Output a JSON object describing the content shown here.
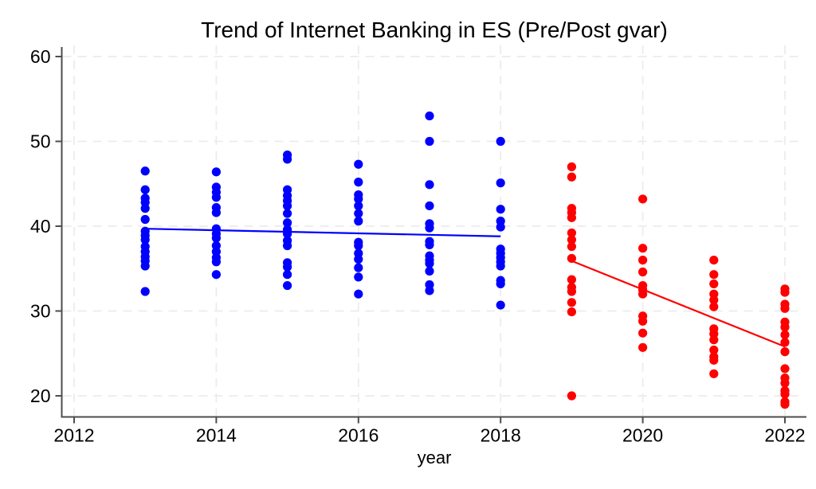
{
  "chart_data": {
    "type": "scatter",
    "title": "Trend of Internet Banking in ES (Pre/Post gvar)",
    "xlabel": "year",
    "ylabel": "",
    "xlim": [
      2011.8,
      2022.3
    ],
    "ylim": [
      18.5,
      61.5
    ],
    "x_ticks": [
      2012,
      2014,
      2016,
      2018,
      2020,
      2022
    ],
    "y_ticks": [
      20,
      30,
      40,
      50,
      60
    ],
    "grid": "both-dashed",
    "legend": "none",
    "colors": {
      "pre": "#0000ff",
      "post": "#ff0000",
      "gridline": "#ececec",
      "axis": "#4d4d4d"
    },
    "series": [
      {
        "name": "pre-gvar-scatter",
        "type": "scatter",
        "color": "#0000ff",
        "points": [
          [
            2013,
            46.5
          ],
          [
            2013,
            44.3
          ],
          [
            2013,
            43.3
          ],
          [
            2013,
            42.8
          ],
          [
            2013,
            42.1
          ],
          [
            2013,
            40.8
          ],
          [
            2013,
            39.4
          ],
          [
            2013,
            38.9
          ],
          [
            2013,
            38.4
          ],
          [
            2013,
            37.6
          ],
          [
            2013,
            37.0
          ],
          [
            2013,
            36.4
          ],
          [
            2013,
            35.9
          ],
          [
            2013,
            35.3
          ],
          [
            2013,
            32.3
          ],
          [
            2014,
            46.4
          ],
          [
            2014,
            44.6
          ],
          [
            2014,
            44.0
          ],
          [
            2014,
            43.4
          ],
          [
            2014,
            42.2
          ],
          [
            2014,
            41.6
          ],
          [
            2014,
            39.7
          ],
          [
            2014,
            39.1
          ],
          [
            2014,
            38.6
          ],
          [
            2014,
            37.7
          ],
          [
            2014,
            37.0
          ],
          [
            2014,
            36.3
          ],
          [
            2014,
            35.8
          ],
          [
            2014,
            34.3
          ],
          [
            2015,
            48.4
          ],
          [
            2015,
            47.9
          ],
          [
            2015,
            44.3
          ],
          [
            2015,
            43.6
          ],
          [
            2015,
            43.0
          ],
          [
            2015,
            42.4
          ],
          [
            2015,
            41.5
          ],
          [
            2015,
            40.4
          ],
          [
            2015,
            39.6
          ],
          [
            2015,
            39.1
          ],
          [
            2015,
            38.3
          ],
          [
            2015,
            37.7
          ],
          [
            2015,
            35.7
          ],
          [
            2015,
            35.2
          ],
          [
            2015,
            34.3
          ],
          [
            2015,
            33.0
          ],
          [
            2016,
            47.3
          ],
          [
            2016,
            45.2
          ],
          [
            2016,
            43.7
          ],
          [
            2016,
            43.2
          ],
          [
            2016,
            42.4
          ],
          [
            2016,
            41.5
          ],
          [
            2016,
            40.6
          ],
          [
            2016,
            38.1
          ],
          [
            2016,
            37.7
          ],
          [
            2016,
            36.8
          ],
          [
            2016,
            36.1
          ],
          [
            2016,
            35.1
          ],
          [
            2016,
            34.0
          ],
          [
            2016,
            32.0
          ],
          [
            2017,
            53.0
          ],
          [
            2017,
            50.0
          ],
          [
            2017,
            44.9
          ],
          [
            2017,
            42.4
          ],
          [
            2017,
            40.3
          ],
          [
            2017,
            39.8
          ],
          [
            2017,
            38.2
          ],
          [
            2017,
            37.8
          ],
          [
            2017,
            36.5
          ],
          [
            2017,
            36.0
          ],
          [
            2017,
            35.6
          ],
          [
            2017,
            34.7
          ],
          [
            2017,
            33.1
          ],
          [
            2017,
            32.4
          ],
          [
            2018,
            50.0
          ],
          [
            2018,
            45.1
          ],
          [
            2018,
            42.0
          ],
          [
            2018,
            40.6
          ],
          [
            2018,
            39.9
          ],
          [
            2018,
            37.3
          ],
          [
            2018,
            36.8
          ],
          [
            2018,
            36.3
          ],
          [
            2018,
            35.8
          ],
          [
            2018,
            35.3
          ],
          [
            2018,
            33.6
          ],
          [
            2018,
            33.2
          ],
          [
            2018,
            30.7
          ]
        ]
      },
      {
        "name": "post-gvar-scatter",
        "type": "scatter",
        "color": "#ff0000",
        "points": [
          [
            2019,
            47.0
          ],
          [
            2019,
            45.8
          ],
          [
            2019,
            42.1
          ],
          [
            2019,
            41.6
          ],
          [
            2019,
            41.0
          ],
          [
            2019,
            39.2
          ],
          [
            2019,
            38.4
          ],
          [
            2019,
            37.6
          ],
          [
            2019,
            36.2
          ],
          [
            2019,
            33.7
          ],
          [
            2019,
            32.8
          ],
          [
            2019,
            32.3
          ],
          [
            2019,
            31.0
          ],
          [
            2019,
            29.9
          ],
          [
            2019,
            20.0
          ],
          [
            2020,
            43.2
          ],
          [
            2020,
            37.4
          ],
          [
            2020,
            36.0
          ],
          [
            2020,
            34.6
          ],
          [
            2020,
            33.0
          ],
          [
            2020,
            32.5
          ],
          [
            2020,
            32.0
          ],
          [
            2020,
            29.4
          ],
          [
            2020,
            28.8
          ],
          [
            2020,
            27.4
          ],
          [
            2020,
            25.7
          ],
          [
            2021,
            36.0
          ],
          [
            2021,
            34.3
          ],
          [
            2021,
            33.2
          ],
          [
            2021,
            32.0
          ],
          [
            2021,
            31.3
          ],
          [
            2021,
            30.5
          ],
          [
            2021,
            27.9
          ],
          [
            2021,
            27.3
          ],
          [
            2021,
            26.6
          ],
          [
            2021,
            25.4
          ],
          [
            2021,
            24.6
          ],
          [
            2021,
            24.2
          ],
          [
            2021,
            22.6
          ],
          [
            2022,
            32.6
          ],
          [
            2022,
            32.2
          ],
          [
            2022,
            30.8
          ],
          [
            2022,
            30.3
          ],
          [
            2022,
            28.7
          ],
          [
            2022,
            28.1
          ],
          [
            2022,
            27.2
          ],
          [
            2022,
            26.3
          ],
          [
            2022,
            25.2
          ],
          [
            2022,
            23.2
          ],
          [
            2022,
            22.1
          ],
          [
            2022,
            21.5
          ],
          [
            2022,
            20.6
          ],
          [
            2022,
            20.2
          ],
          [
            2022,
            19.3
          ],
          [
            2022,
            19.0
          ]
        ]
      },
      {
        "name": "pre-gvar-trend",
        "type": "line",
        "color": "#0000ff",
        "x": [
          2013,
          2018
        ],
        "y": [
          39.7,
          38.8
        ]
      },
      {
        "name": "post-gvar-trend",
        "type": "line",
        "color": "#ff0000",
        "x": [
          2019,
          2022
        ],
        "y": [
          35.9,
          25.8
        ]
      }
    ]
  }
}
